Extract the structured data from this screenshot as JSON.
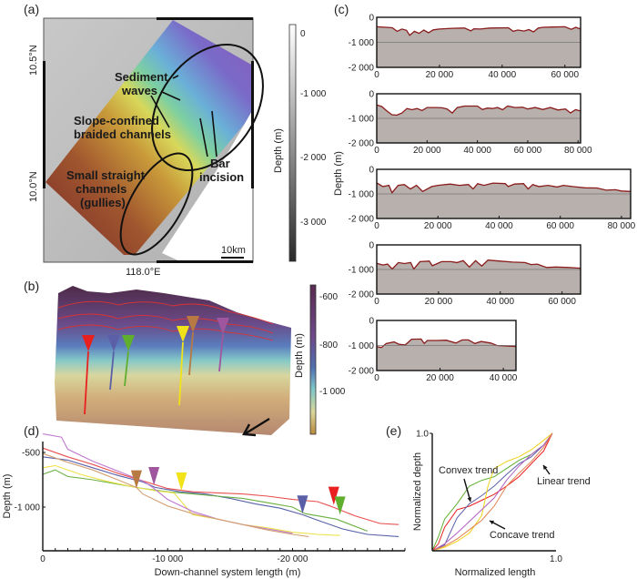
{
  "panels": {
    "a": {
      "label": "(a)",
      "lat_ticks": [
        "10.5°N",
        "10.0°N"
      ],
      "lon_tick": "118.0°E",
      "scale_bar": "10km",
      "annotations": {
        "sediment_waves": [
          "Sediment",
          "waves"
        ],
        "braided": [
          "Slope-confined",
          "braided channels"
        ],
        "gullies": [
          "Small straight",
          "channels",
          "(gullies)"
        ],
        "bar_incision": [
          "Bar",
          "incision"
        ]
      },
      "colorbar": {
        "label": "Depth (m)",
        "ticks": [
          "0",
          "-1 000",
          "-2 000",
          "-3 000"
        ],
        "colors": [
          "#ffffff",
          "#2a2a2a"
        ]
      }
    },
    "b": {
      "label": "(b)",
      "colorbar": {
        "label": "Depth (m)",
        "ticks": [
          "-600",
          "-800",
          "-1 000"
        ],
        "colors": [
          "#5a2a50",
          "#6e4a8a",
          "#4f6fb0",
          "#7fc6c8",
          "#d9d79a",
          "#b98a3c"
        ]
      },
      "markers": [
        {
          "color": "#e82020"
        },
        {
          "color": "#5b5fa8"
        },
        {
          "color": "#5fae2e"
        },
        {
          "color": "#f2e21a"
        },
        {
          "color": "#b87a42"
        },
        {
          "color": "#a0569e"
        }
      ]
    },
    "c": {
      "label": "(c)",
      "ylabel": "Depth (m)"
    },
    "d": {
      "label": "(d)"
    },
    "e": {
      "label": "(e)"
    }
  },
  "chart_data": [
    {
      "id": "c1",
      "type": "area",
      "ylabel": "Depth (m)",
      "xlim": [
        0,
        65000
      ],
      "ylim": [
        -2000,
        0
      ],
      "xticks": [
        0,
        20000,
        40000,
        60000
      ],
      "xtick_labels": [
        "0",
        "20 000",
        "40 000",
        "60 000"
      ],
      "yticks": [
        0,
        -1000,
        -2000
      ],
      "ytick_labels": [
        "0",
        "-1 000",
        "-2 000"
      ],
      "reference_line": -1000,
      "x": [
        0,
        3000,
        5000,
        6500,
        8000,
        9500,
        10500,
        12000,
        13500,
        15000,
        16500,
        18000,
        20000,
        24000,
        28000,
        30000,
        31000,
        33000,
        36000,
        42000,
        43500,
        45000,
        47000,
        48500,
        50000,
        51500,
        53000,
        56000,
        60000,
        62000,
        63500,
        65000
      ],
      "y": [
        -380,
        -400,
        -420,
        -560,
        -470,
        -520,
        -720,
        -560,
        -640,
        -510,
        -620,
        -500,
        -470,
        -440,
        -430,
        -540,
        -460,
        -470,
        -430,
        -420,
        -560,
        -510,
        -550,
        -490,
        -580,
        -430,
        -400,
        -390,
        -380,
        -480,
        -400,
        -470
      ]
    },
    {
      "id": "c2",
      "type": "area",
      "xlim": [
        0,
        81000
      ],
      "ylim": [
        -2000,
        0
      ],
      "xticks": [
        0,
        20000,
        40000,
        60000,
        80000
      ],
      "xtick_labels": [
        "0",
        "20 000",
        "40 000",
        "60 000",
        "80 000"
      ],
      "yticks": [
        0,
        -1000,
        -2000
      ],
      "ytick_labels": [
        "0",
        "-1 000",
        "-2 000"
      ],
      "reference_line": -1000,
      "x": [
        0,
        2000,
        4000,
        6000,
        8000,
        10000,
        12000,
        14000,
        16000,
        18000,
        20000,
        23000,
        26000,
        28000,
        30000,
        32000,
        35000,
        40000,
        42000,
        44000,
        46000,
        48000,
        50000,
        52000,
        55000,
        58000,
        60000,
        63000,
        66000,
        69000,
        72000,
        75000,
        77000,
        79000,
        81000
      ],
      "y": [
        -450,
        -520,
        -700,
        -850,
        -870,
        -780,
        -600,
        -650,
        -600,
        -680,
        -560,
        -560,
        -570,
        -620,
        -780,
        -560,
        -500,
        -500,
        -640,
        -580,
        -600,
        -560,
        -650,
        -500,
        -560,
        -550,
        -620,
        -560,
        -640,
        -560,
        -660,
        -620,
        -780,
        -650,
        -700
      ]
    },
    {
      "id": "c3",
      "type": "area",
      "xlim": [
        0,
        83000
      ],
      "ylim": [
        -2000,
        0
      ],
      "xticks": [
        0,
        20000,
        40000,
        60000,
        80000
      ],
      "xtick_labels": [
        "0",
        "20 000",
        "40 000",
        "60 000",
        "80 000"
      ],
      "yticks": [
        0,
        -1000,
        -2000
      ],
      "ytick_labels": [
        "0",
        "-1 000",
        "-2 000"
      ],
      "reference_line": -1000,
      "x": [
        0,
        2000,
        4000,
        5000,
        7000,
        9000,
        11000,
        13000,
        15000,
        18000,
        20000,
        24000,
        27000,
        30000,
        31500,
        33000,
        35000,
        38000,
        42000,
        43000,
        45000,
        48000,
        49500,
        51000,
        53000,
        56000,
        59000,
        61000,
        64000,
        68000,
        72000,
        75000,
        78000,
        80000,
        83000
      ],
      "y": [
        -550,
        -700,
        -650,
        -950,
        -650,
        -620,
        -800,
        -650,
        -900,
        -700,
        -650,
        -600,
        -650,
        -620,
        -800,
        -580,
        -650,
        -560,
        -580,
        -700,
        -600,
        -580,
        -800,
        -620,
        -700,
        -650,
        -720,
        -650,
        -700,
        -750,
        -760,
        -850,
        -830,
        -880,
        -900
      ]
    },
    {
      "id": "c4",
      "type": "area",
      "xlim": [
        0,
        66000
      ],
      "ylim": [
        -2000,
        0
      ],
      "xticks": [
        0,
        20000,
        40000,
        60000
      ],
      "xtick_labels": [
        "0",
        "20 000",
        "40 000",
        "60 000"
      ],
      "yticks": [
        0,
        -1000,
        -2000
      ],
      "ytick_labels": [
        "0",
        "-1 000",
        "-2 000"
      ],
      "reference_line": -1000,
      "x": [
        0,
        2000,
        3500,
        5000,
        7000,
        9000,
        11000,
        12000,
        14000,
        17000,
        18000,
        21000,
        24000,
        26000,
        28000,
        30000,
        32000,
        34000,
        36000,
        40000,
        44000,
        48000,
        50000,
        52000,
        55000,
        58000,
        62000,
        66000
      ],
      "y": [
        -750,
        -820,
        -780,
        -980,
        -720,
        -760,
        -720,
        -980,
        -680,
        -660,
        -850,
        -680,
        -680,
        -720,
        -640,
        -900,
        -640,
        -860,
        -620,
        -660,
        -700,
        -720,
        -800,
        -780,
        -920,
        -900,
        -920,
        -950
      ]
    },
    {
      "id": "c5",
      "type": "area",
      "xlim": [
        0,
        44000
      ],
      "ylim": [
        -2000,
        0
      ],
      "xticks": [
        0,
        20000,
        40000
      ],
      "xtick_labels": [
        "0",
        "20 000",
        "40 000"
      ],
      "yticks": [
        0,
        -1000,
        -2000
      ],
      "ytick_labels": [
        "0",
        "-1 000",
        "-2 000"
      ],
      "reference_line": -1000,
      "x": [
        0,
        1500,
        3000,
        5500,
        7000,
        9000,
        11000,
        14000,
        15000,
        16000,
        19000,
        22000,
        25000,
        27000,
        29000,
        31000,
        33000,
        36000,
        38000,
        40000,
        44000
      ],
      "y": [
        -1050,
        -1080,
        -920,
        -860,
        -950,
        -980,
        -750,
        -740,
        -920,
        -800,
        -800,
        -790,
        -900,
        -780,
        -780,
        -920,
        -840,
        -900,
        -1000,
        -1010,
        -1040
      ]
    },
    {
      "id": "d",
      "type": "line",
      "xlabel": "Down-channel system length (m)",
      "ylabel": "Depth (m)",
      "xlim": [
        0,
        -29000
      ],
      "ylim": [
        -1400,
        -400
      ],
      "xticks": [
        0,
        -10000,
        -20000
      ],
      "xtick_labels": [
        "0",
        "-10 000",
        "-20 000"
      ],
      "yticks": [
        -500,
        -1000
      ],
      "ytick_labels": [
        "-500",
        "-1 000"
      ],
      "series": [
        {
          "name": "red",
          "color": "#e85050",
          "x": [
            0,
            2000,
            4000,
            6000,
            8000,
            10000,
            12000,
            14000,
            16000,
            18000,
            20000,
            22000,
            23000,
            25000,
            27000,
            28500
          ],
          "y": [
            -460,
            -540,
            -610,
            -690,
            -760,
            -830,
            -860,
            -870,
            -880,
            -900,
            -930,
            -950,
            -990,
            -1080,
            -1150,
            -1160
          ]
        },
        {
          "name": "blue",
          "color": "#5860a8",
          "x": [
            0,
            2000,
            4000,
            6000,
            8000,
            9000,
            11000,
            13000,
            15000,
            17000,
            19000,
            20800,
            22000,
            24000,
            26000,
            28500
          ],
          "y": [
            -540,
            -570,
            -640,
            -710,
            -770,
            -820,
            -860,
            -880,
            -920,
            -970,
            -1010,
            -1070,
            -1120,
            -1200,
            -1250,
            -1270
          ]
        },
        {
          "name": "green",
          "color": "#6ab040",
          "x": [
            0,
            1000,
            2000,
            4000,
            6000,
            8000,
            10000,
            12000,
            14000,
            16000,
            18000,
            20000,
            21000,
            23500,
            26000
          ],
          "y": [
            -700,
            -660,
            -720,
            -750,
            -790,
            -830,
            -860,
            -880,
            -900,
            -920,
            -960,
            -1000,
            -1060,
            -1110,
            -1220
          ]
        },
        {
          "name": "yellow",
          "color": "#ece24a",
          "x": [
            0,
            1000,
            3000,
            5000,
            7000,
            9000,
            10500,
            12000,
            14000,
            16000,
            18000,
            20000,
            22000,
            23800
          ],
          "y": [
            -640,
            -620,
            -700,
            -760,
            -810,
            -850,
            -870,
            -1070,
            -1110,
            -1160,
            -1190,
            -1230,
            -1250,
            -1260
          ]
        },
        {
          "name": "purple",
          "color": "#c07ad0",
          "x": [
            0,
            1500,
            2000,
            4000,
            6000,
            8000,
            8800,
            10000,
            12000,
            14000,
            16000,
            18000,
            20000
          ],
          "y": [
            -330,
            -360,
            -470,
            -580,
            -670,
            -760,
            -820,
            -930,
            -1040,
            -1110,
            -1160,
            -1200,
            -1240
          ]
        },
        {
          "name": "tan",
          "color": "#d4a074",
          "x": [
            0,
            2000,
            4000,
            6000,
            7500,
            8000,
            10000,
            12000,
            14000,
            16000,
            18000,
            20000,
            21300
          ],
          "y": [
            -510,
            -590,
            -660,
            -750,
            -820,
            -880,
            -990,
            -1060,
            -1110,
            -1160,
            -1210,
            -1250,
            -1270
          ]
        }
      ],
      "markers": [
        {
          "color": "#b87a42",
          "x": -7500,
          "y": -830
        },
        {
          "color": "#a0569e",
          "x": -8900,
          "y": -800
        },
        {
          "color": "#f2e21a",
          "x": -11100,
          "y": -850
        },
        {
          "color": "#5b5fa8",
          "x": -20800,
          "y": -1060
        },
        {
          "color": "#e82020",
          "x": -23300,
          "y": -980
        },
        {
          "color": "#5fae2e",
          "x": -23800,
          "y": -1070
        }
      ]
    },
    {
      "id": "e",
      "type": "line",
      "xlabel": "Normalized length",
      "ylabel": "Normalized depth",
      "xlim": [
        0,
        1.0
      ],
      "ylim": [
        0,
        1.0
      ],
      "xtick_labels": [
        "1.0"
      ],
      "ytick_labels": [
        "1.0"
      ],
      "annotations": [
        "Convex trend",
        "Linear trend",
        "Concave trend"
      ],
      "series": [
        {
          "name": "green",
          "color": "#5fae2e",
          "x": [
            0,
            0.05,
            0.1,
            0.2,
            0.3,
            0.4,
            0.5,
            0.6,
            0.7,
            0.8,
            0.9,
            0.97
          ],
          "y": [
            0,
            0.12,
            0.27,
            0.4,
            0.55,
            0.6,
            0.63,
            0.7,
            0.77,
            0.82,
            0.9,
            1.0
          ]
        },
        {
          "name": "red",
          "color": "#e82020",
          "x": [
            0,
            0.05,
            0.1,
            0.2,
            0.3,
            0.4,
            0.5,
            0.6,
            0.7,
            0.8,
            0.9,
            0.97
          ],
          "y": [
            0,
            0.06,
            0.2,
            0.35,
            0.38,
            0.43,
            0.48,
            0.55,
            0.63,
            0.74,
            0.85,
            1.0
          ]
        },
        {
          "name": "blue",
          "color": "#5b5fa8",
          "x": [
            0,
            0.1,
            0.2,
            0.3,
            0.4,
            0.5,
            0.6,
            0.7,
            0.8,
            0.9,
            0.97
          ],
          "y": [
            0,
            0.05,
            0.28,
            0.4,
            0.47,
            0.55,
            0.65,
            0.74,
            0.8,
            0.9,
            1.0
          ]
        },
        {
          "name": "yellow",
          "color": "#f2d21a",
          "x": [
            0,
            0.1,
            0.2,
            0.3,
            0.4,
            0.45,
            0.5,
            0.6,
            0.7,
            0.8,
            0.9,
            0.97
          ],
          "y": [
            0,
            0.03,
            0.08,
            0.15,
            0.3,
            0.55,
            0.7,
            0.76,
            0.8,
            0.86,
            0.94,
            1.0
          ]
        },
        {
          "name": "purple",
          "color": "#b060c0",
          "x": [
            0,
            0.1,
            0.2,
            0.3,
            0.4,
            0.5,
            0.6,
            0.7,
            0.8,
            0.9,
            0.97
          ],
          "y": [
            0,
            0.06,
            0.15,
            0.25,
            0.35,
            0.45,
            0.6,
            0.72,
            0.82,
            0.9,
            1.0
          ]
        },
        {
          "name": "orange",
          "color": "#e08050",
          "x": [
            0,
            0.1,
            0.2,
            0.3,
            0.4,
            0.5,
            0.6,
            0.7,
            0.8,
            0.9,
            0.97
          ],
          "y": [
            0,
            0.04,
            0.1,
            0.18,
            0.26,
            0.38,
            0.55,
            0.66,
            0.76,
            0.88,
            1.0
          ]
        }
      ]
    }
  ]
}
